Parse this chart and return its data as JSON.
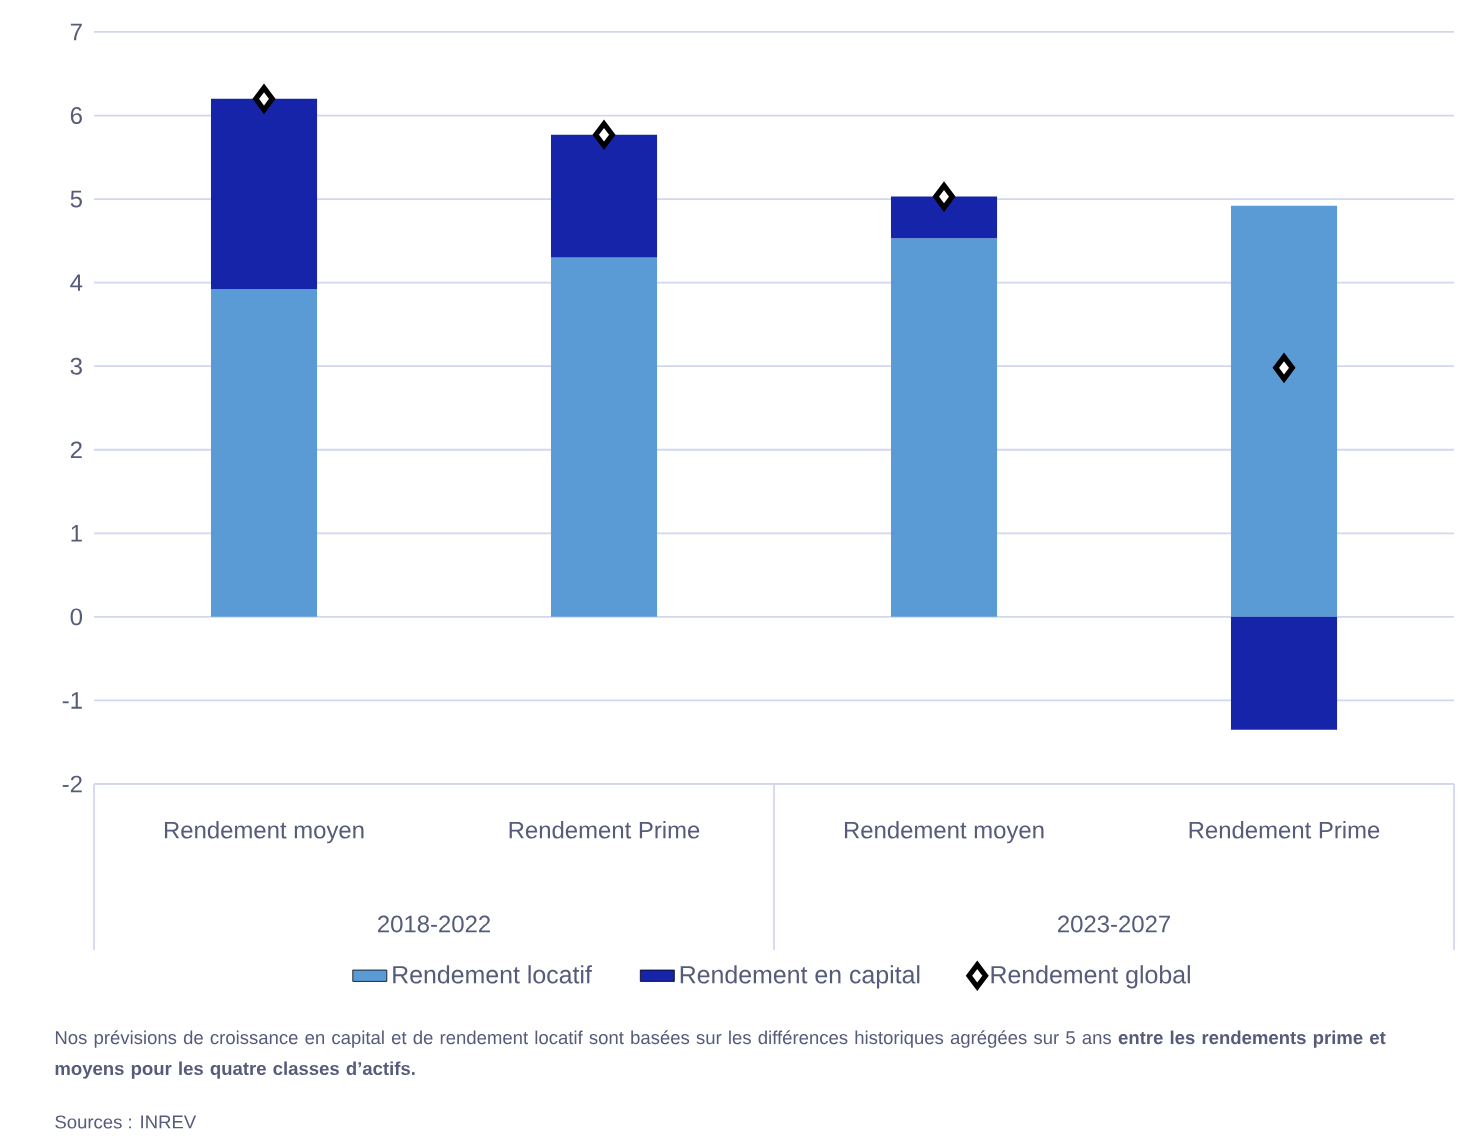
{
  "chart_data": {
    "type": "bar",
    "stacked": true,
    "categories": [
      "Rendement moyen",
      "Rendement Prime",
      "Rendement moyen",
      "Rendement Prime"
    ],
    "series": [
      {
        "name": "Rendement locatif",
        "color": "#5b9bd5",
        "values": [
          3.92,
          4.3,
          4.53,
          4.92
        ]
      },
      {
        "name": "Rendement en capital",
        "color": "#1524a8",
        "values": [
          2.28,
          1.47,
          0.5,
          -1.35
        ]
      },
      {
        "name": "Rendement global",
        "type": "scatter",
        "marker": "diamond",
        "color": "#000000",
        "values": [
          6.2,
          5.77,
          5.03,
          2.98
        ]
      }
    ],
    "ylim": [
      -2,
      7
    ],
    "yticks": [
      -2,
      -1,
      0,
      1,
      2,
      3,
      4,
      5,
      6,
      7
    ],
    "grid": "y",
    "legend": "bottom",
    "annotations": [
      "2018-2022",
      "2023-2027",
      "Nos prévisions de croissance en capital et de rendement locatif sont basées sur les différences historiques agrégées sur 5 ans **entre les rendements prime et moyens pour les quatre classes d’actifs.**",
      "Sources : INREV"
    ]
  }
}
